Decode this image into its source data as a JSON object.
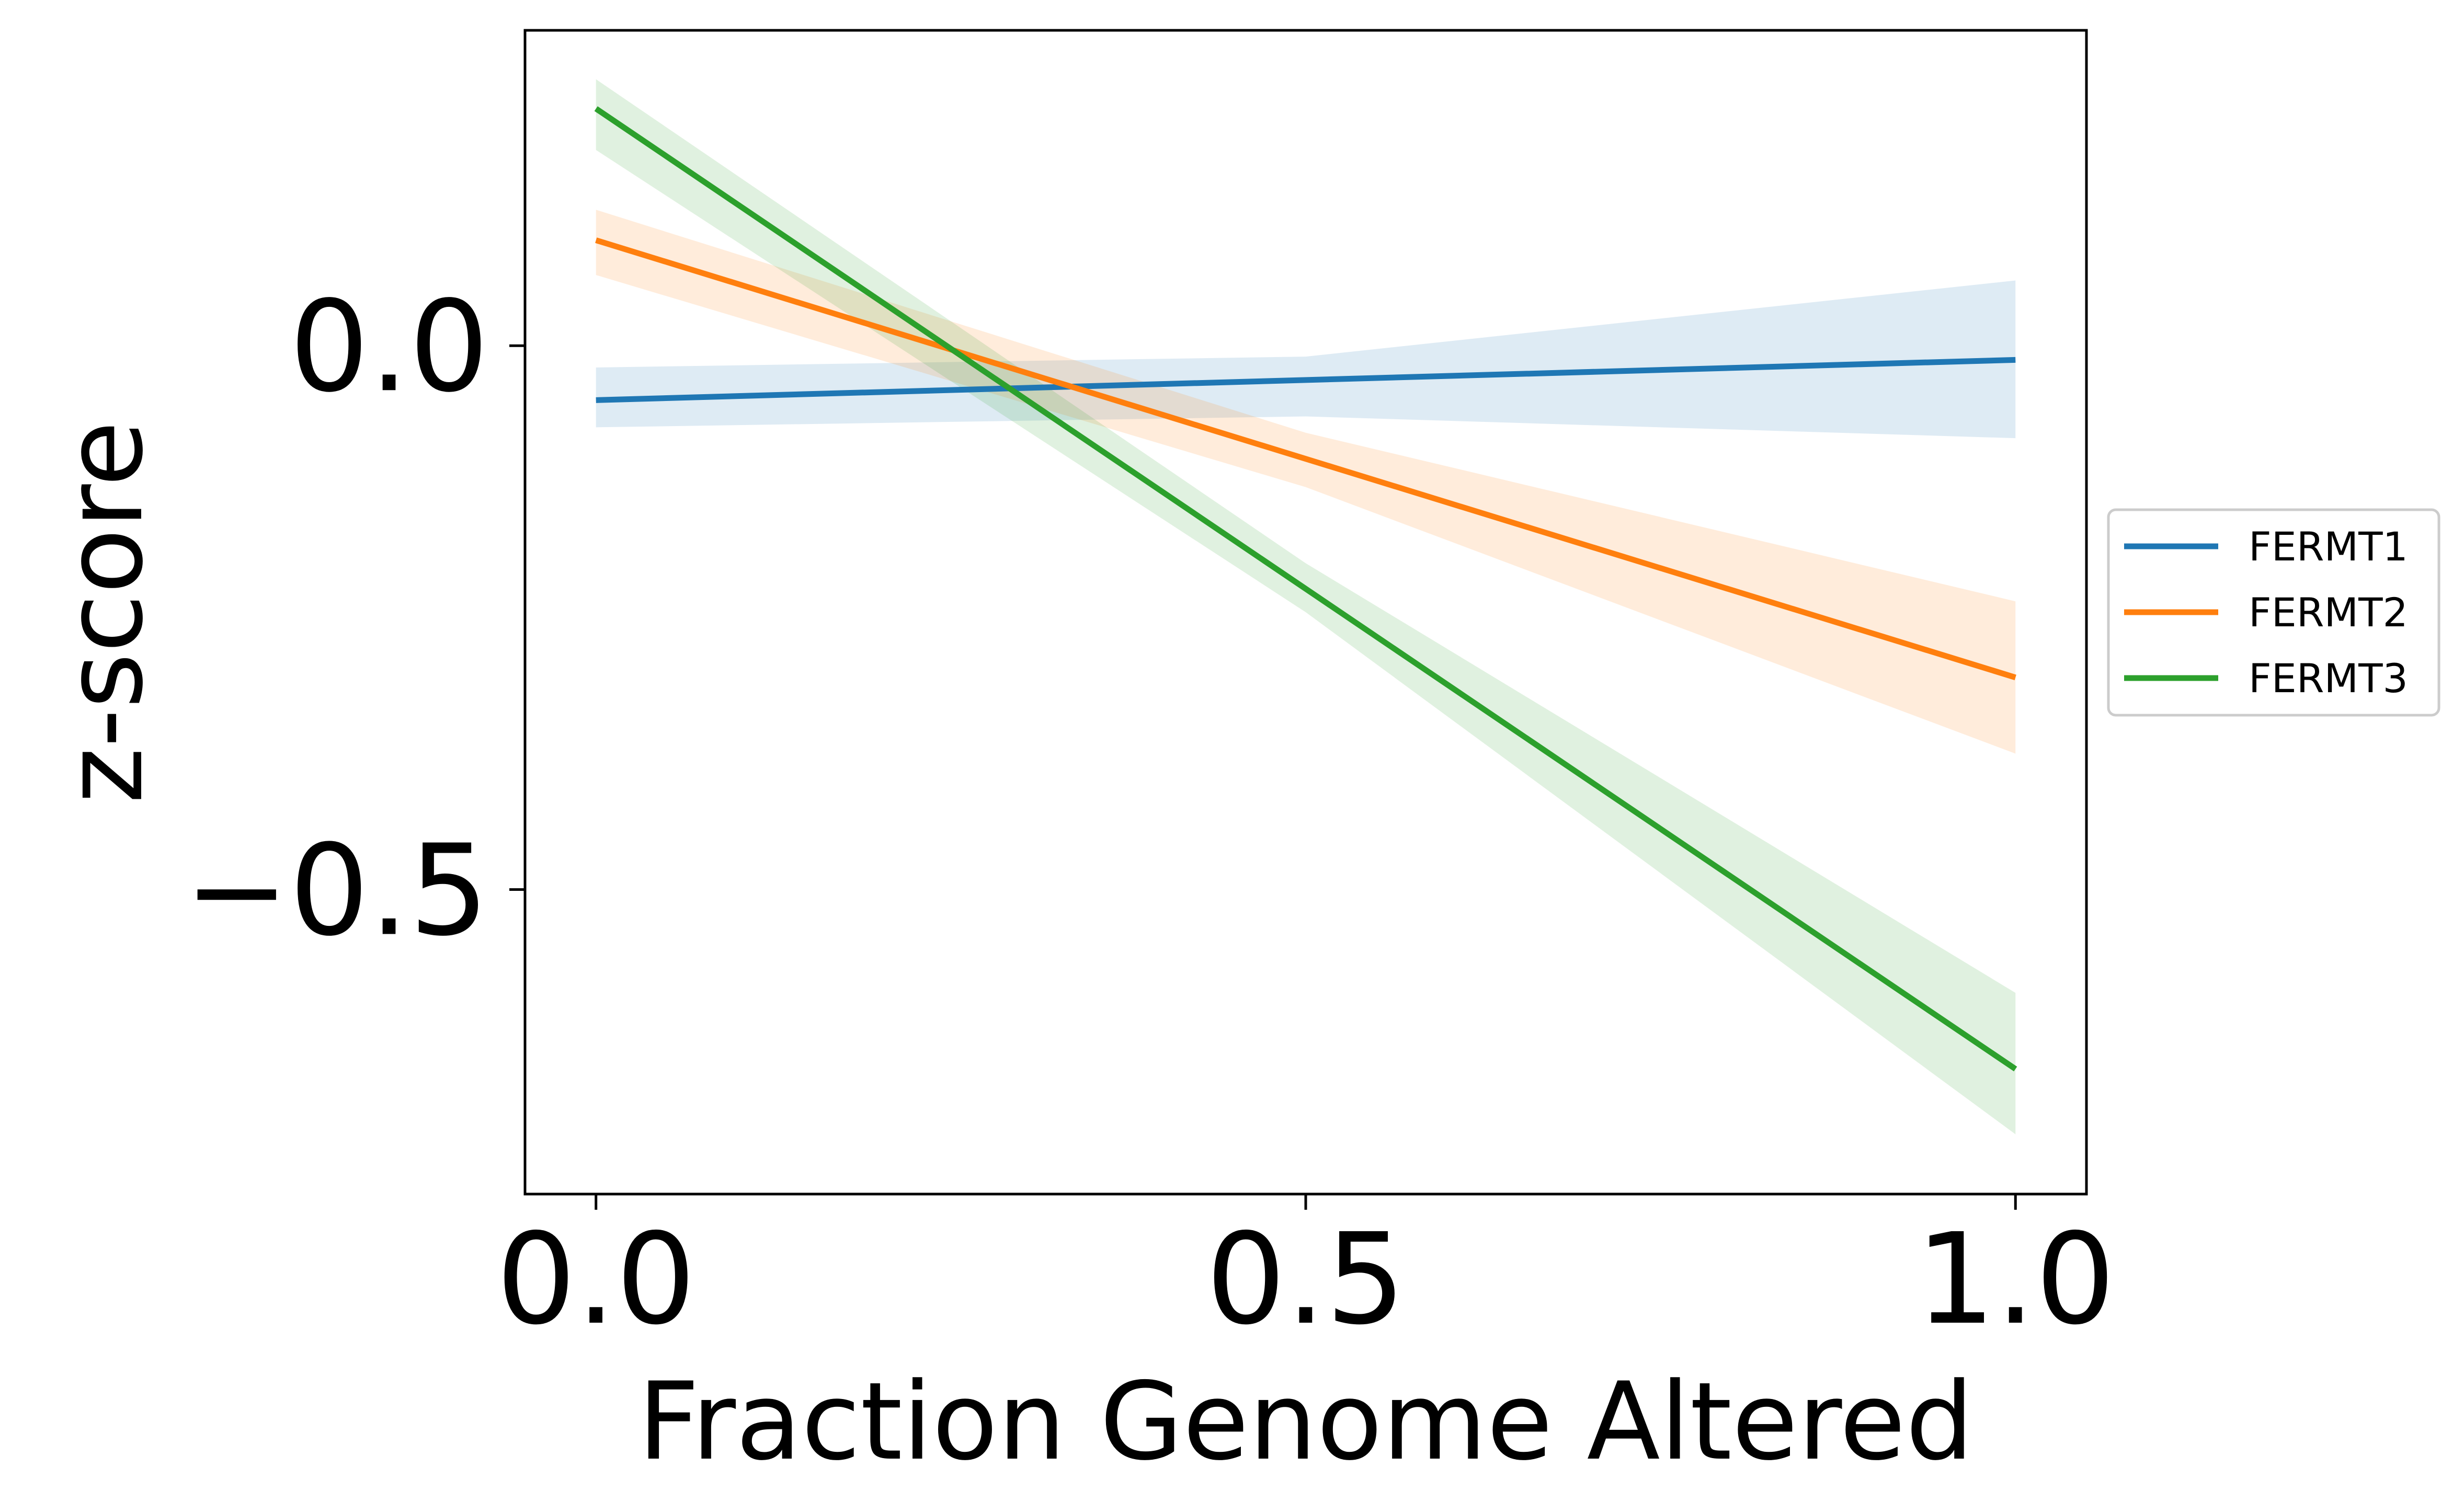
{
  "chart_data": {
    "type": "line",
    "title": "",
    "xlabel": "Fraction Genome Altered",
    "ylabel": "z-score",
    "xlim": [
      -0.05,
      1.05
    ],
    "ylim": [
      -0.78,
      0.29
    ],
    "xticks": [
      0.0,
      0.5,
      1.0
    ],
    "xtick_labels": [
      "0.0",
      "0.5",
      "1.0"
    ],
    "yticks": [
      0.0,
      -0.5
    ],
    "ytick_labels": [
      "0.0",
      "−0.5"
    ],
    "grid": false,
    "legend_position": "right",
    "series": [
      {
        "name": "FERMT1",
        "color": "#1f77b4",
        "x": [
          0.0,
          1.0
        ],
        "y": [
          -0.05,
          -0.013
        ],
        "ci_x": [
          0.0,
          0.5,
          1.0
        ],
        "ci_lower": [
          -0.075,
          -0.065,
          -0.085
        ],
        "ci_upper": [
          -0.02,
          -0.01,
          0.06
        ]
      },
      {
        "name": "FERMT2",
        "color": "#ff7f0e",
        "x": [
          0.0,
          1.0
        ],
        "y": [
          0.097,
          -0.305
        ],
        "ci_x": [
          0.0,
          0.5,
          1.0
        ],
        "ci_lower": [
          0.065,
          -0.13,
          -0.375
        ],
        "ci_upper": [
          0.125,
          -0.08,
          -0.235
        ]
      },
      {
        "name": "FERMT3",
        "color": "#2ca02c",
        "x": [
          0.0,
          1.0
        ],
        "y": [
          0.218,
          -0.665
        ],
        "ci_x": [
          0.0,
          0.5,
          1.0
        ],
        "ci_lower": [
          0.18,
          -0.245,
          -0.725
        ],
        "ci_upper": [
          0.245,
          -0.2,
          -0.595
        ]
      }
    ]
  }
}
